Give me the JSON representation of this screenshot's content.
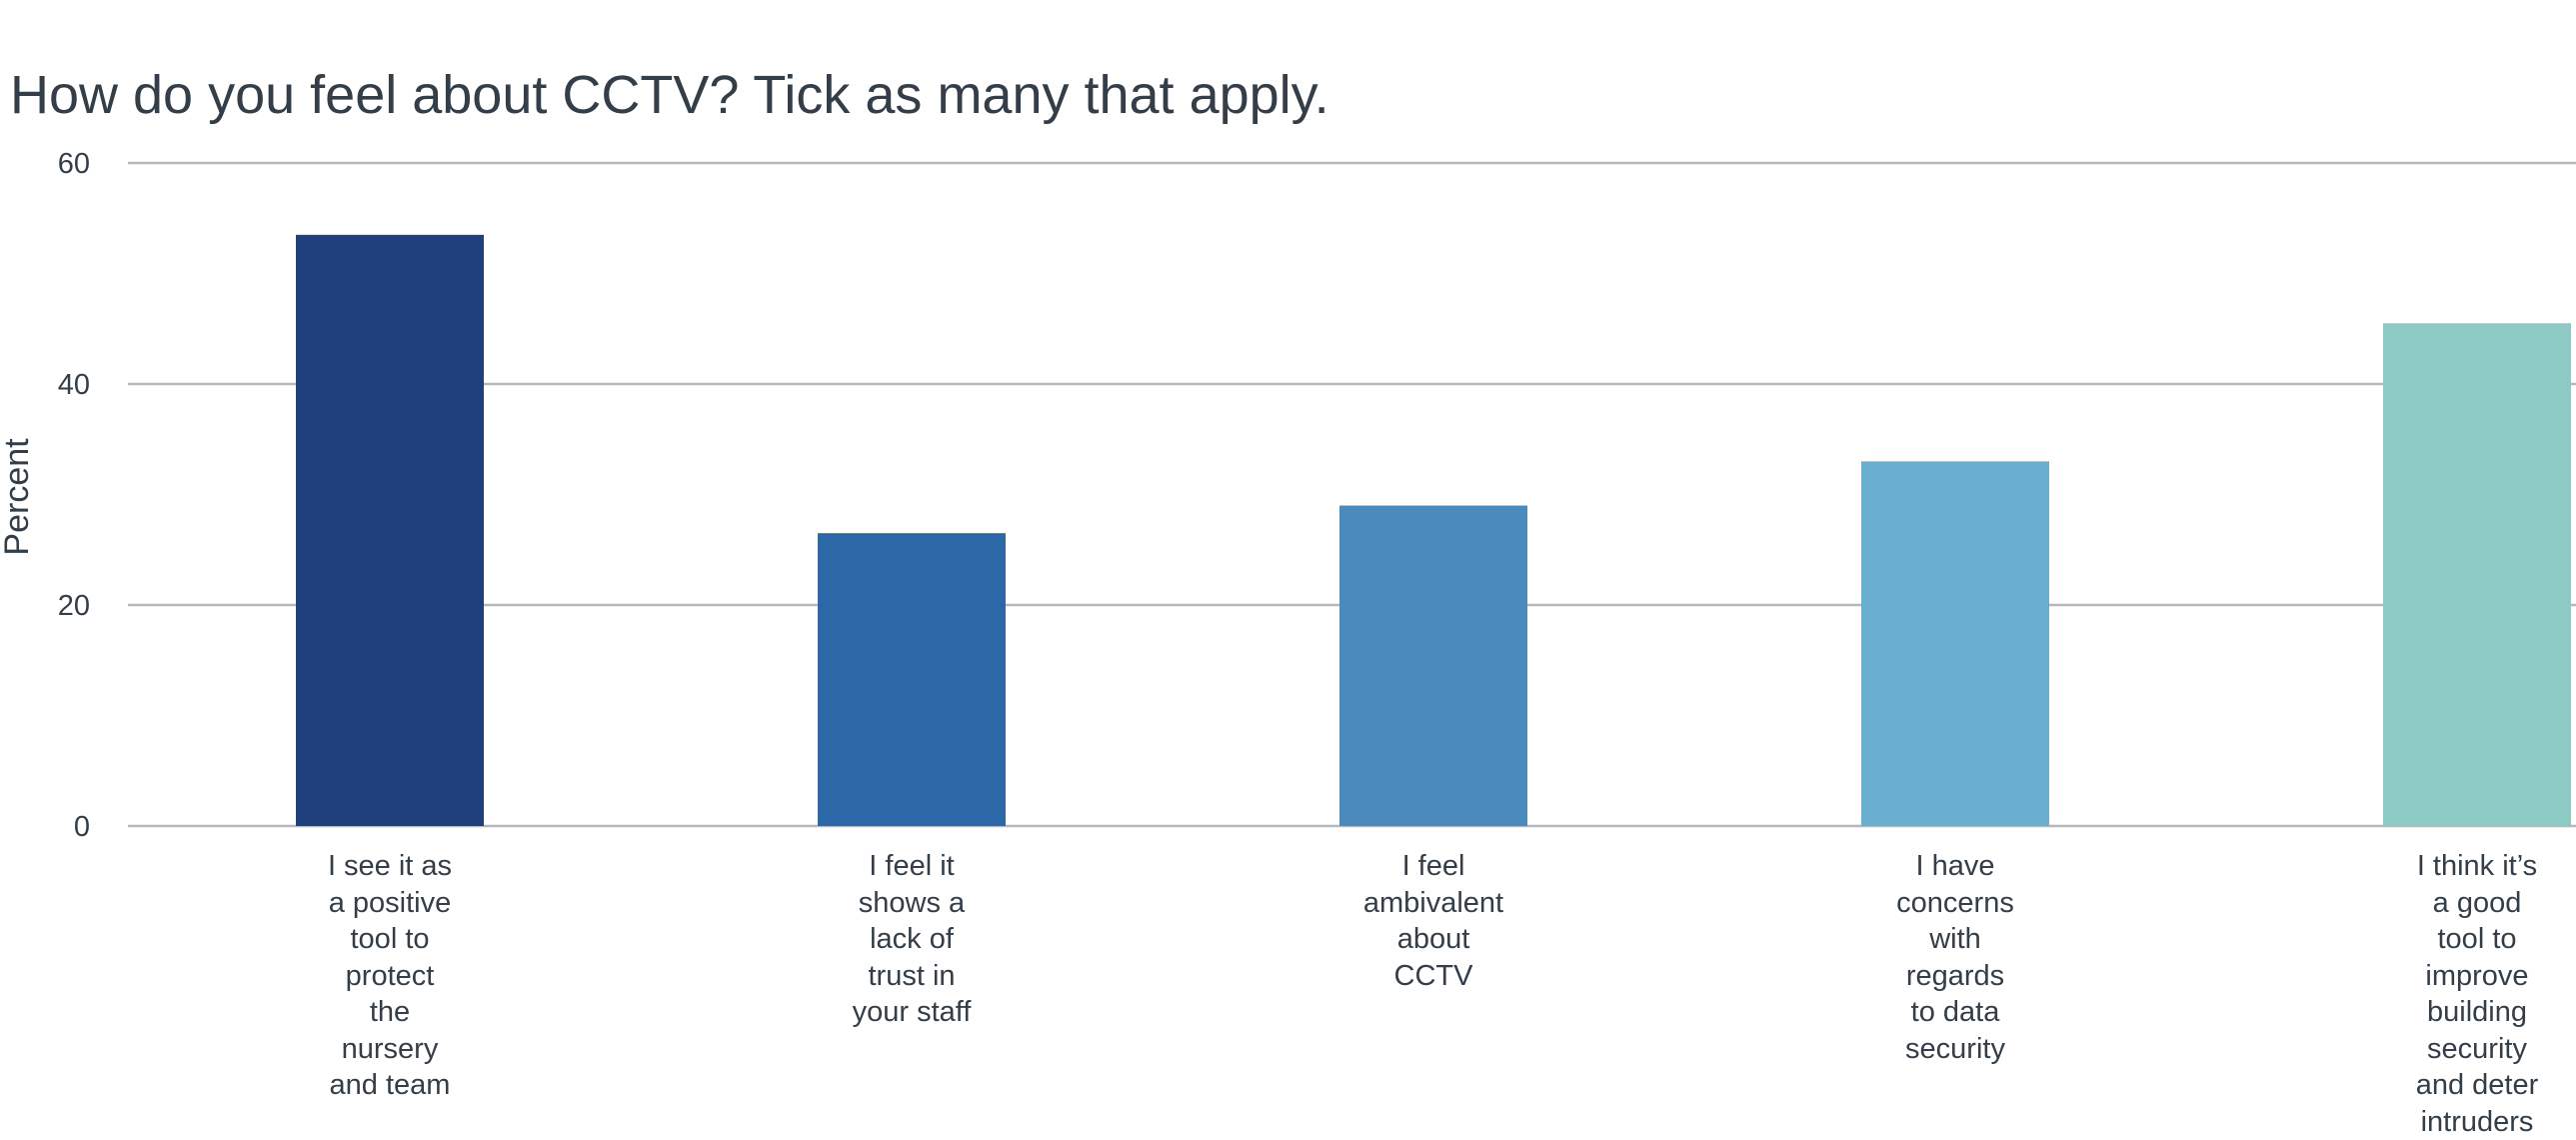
{
  "chart_data": {
    "type": "bar",
    "title": "How do you feel about CCTV? Tick as many that apply.",
    "ylabel": "Percent",
    "xlabel": "",
    "ylim": [
      0,
      60
    ],
    "yticks": [
      0,
      20,
      40,
      60
    ],
    "grid": true,
    "categories": [
      "I see it as\na positive\ntool to\nprotect\nthe\nnursery\nand team",
      "I feel it\nshows a\nlack of\ntrust in\nyour staff",
      "I feel\nambivalent\nabout\nCCTV",
      "I have\nconcerns\nwith\nregards\nto data\nsecurity",
      "I think it’s\na good\ntool to\nimprove\nbuilding\nsecurity\nand deter\nintruders"
    ],
    "values": [
      53.5,
      26.5,
      29,
      33,
      45.5
    ],
    "colors": [
      "#1e3f7b",
      "#2c67a8",
      "#4a8abc",
      "#6aafd0",
      "#8ccac3"
    ]
  }
}
